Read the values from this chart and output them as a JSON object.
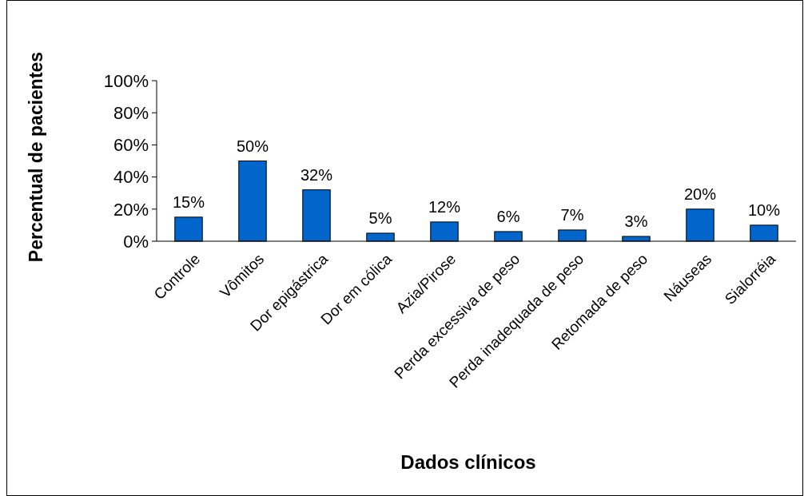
{
  "chart_data": {
    "type": "bar",
    "xlabel": "Dados clínicos",
    "ylabel": "Percentual de pacientes",
    "categories": [
      "Controle",
      "Vômitos",
      "Dor epigástrica",
      "Dor em cólica",
      "Azia/Pirose",
      "Perda excessiva de peso",
      "Perda inadequada de peso",
      "Retomada de peso",
      "Náuseas",
      "Sialorréia"
    ],
    "values": [
      15,
      50,
      32,
      5,
      12,
      6,
      7,
      3,
      20,
      10
    ],
    "value_labels": [
      "15%",
      "50%",
      "32%",
      "5%",
      "12%",
      "6%",
      "7%",
      "3%",
      "20%",
      "10%"
    ],
    "color": "#0066cc",
    "ylim": [
      0,
      100
    ],
    "yticks": [
      {
        "value": 0,
        "label": "0%"
      },
      {
        "value": 20,
        "label": "20%"
      },
      {
        "value": 40,
        "label": "40%"
      },
      {
        "value": 60,
        "label": "60%"
      },
      {
        "value": 80,
        "label": "80%"
      },
      {
        "value": 100,
        "label": "100%"
      }
    ],
    "grid": false
  }
}
